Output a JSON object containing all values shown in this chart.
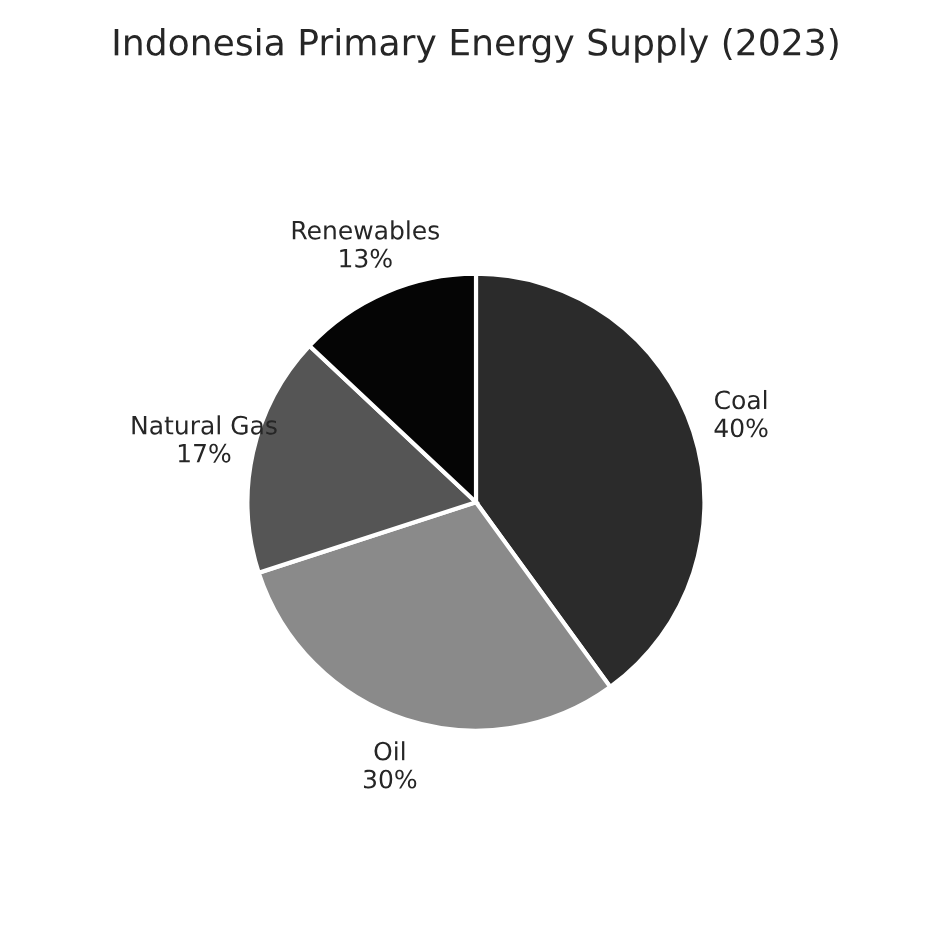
{
  "chart_data": {
    "type": "pie",
    "title": "Indonesia Primary Energy Supply (2023)",
    "categories": [
      "Coal",
      "Oil",
      "Natural Gas",
      "Renewables"
    ],
    "values": [
      40,
      30,
      17,
      13
    ],
    "value_labels": [
      "40%",
      "30%",
      "17%",
      "13%"
    ],
    "colors": [
      "#2b2b2b",
      "#8a8a8a",
      "#555555",
      "#050505"
    ]
  }
}
